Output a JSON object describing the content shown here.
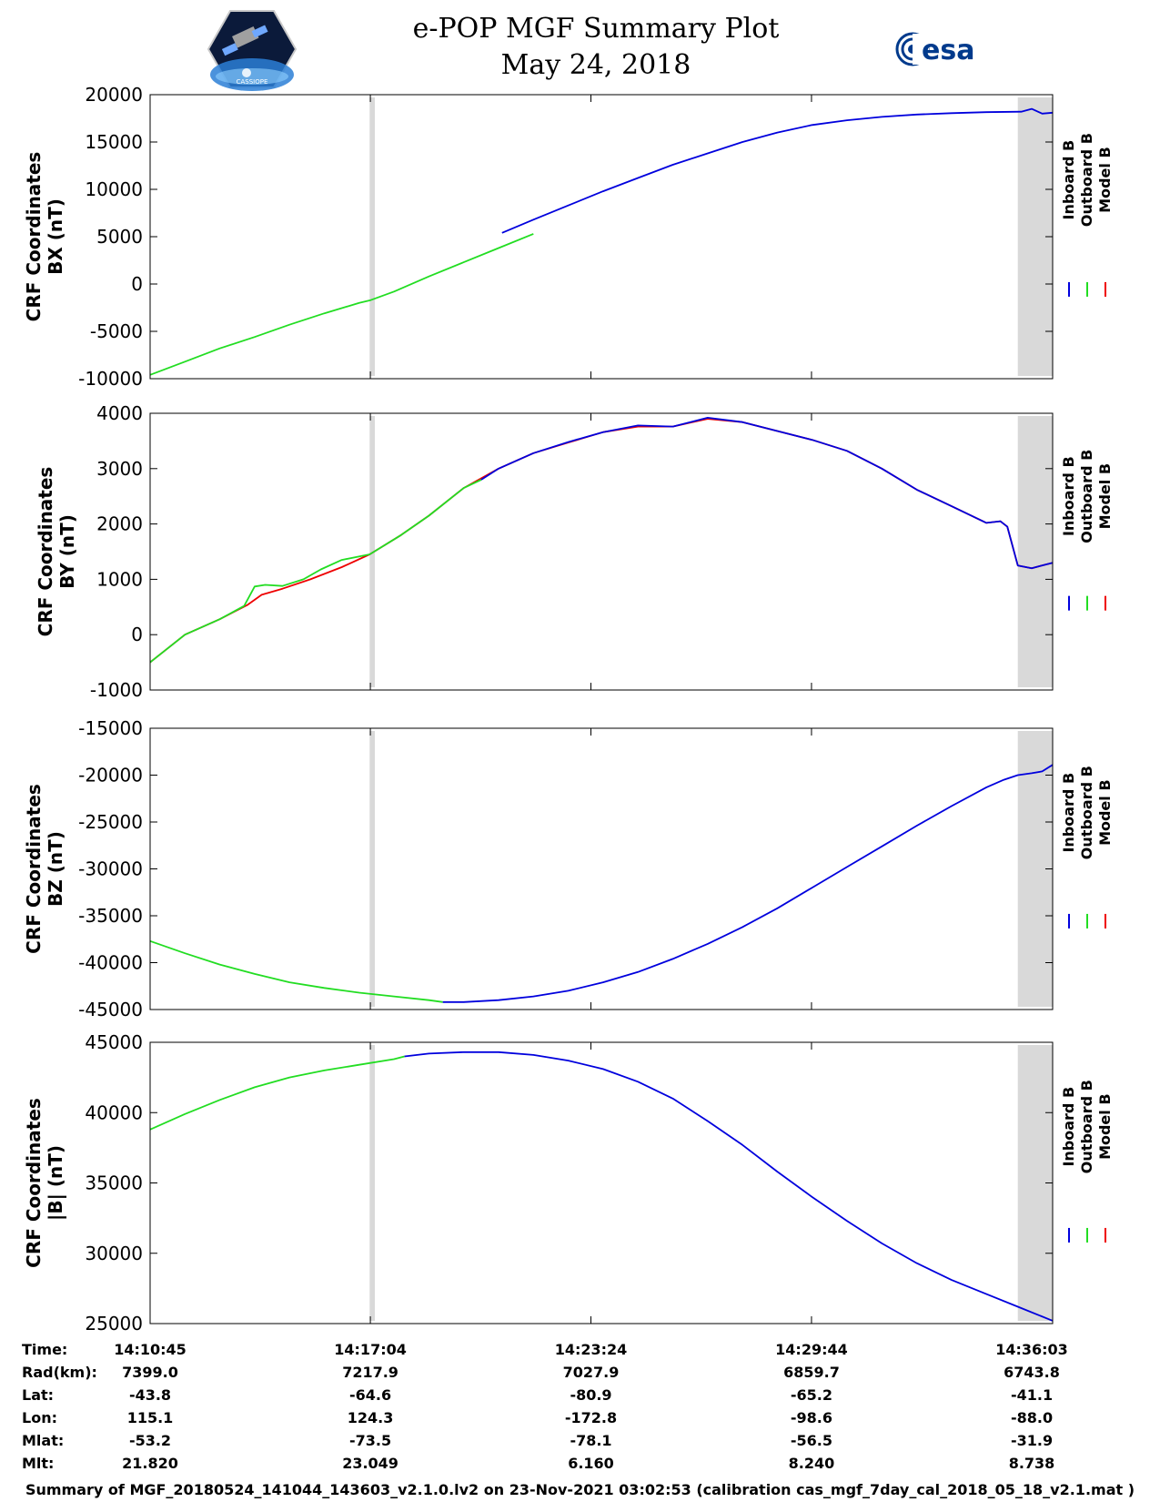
{
  "title": "e-POP MGF Summary Plot",
  "subtitle": "May 24, 2018",
  "esa_logo_text": "esa",
  "cassiope_logo_text": "CASSIOPE",
  "legend_labels": [
    "Inboard B",
    "Outboard B",
    "Model B"
  ],
  "colors": {
    "inboard": "#0000dd",
    "outboard": "#22dd22",
    "model": "#ee0000",
    "gap_band": "#d9d9d9",
    "esa_blue": "#003a8c"
  },
  "chart_data": [
    {
      "type": "line",
      "id": "bx",
      "ylabel_line1": "CRF Coordinates",
      "ylabel_line2": "BX (nT)",
      "ylim": [
        -10000,
        20000
      ],
      "yticks": [
        20000,
        15000,
        10000,
        5000,
        0,
        -5000,
        -10000
      ],
      "ytick_labels": [
        "20000",
        "15000",
        "10000",
        "5000",
        "0",
        "-5000",
        "-10000"
      ],
      "x_minutes": [
        0,
        1,
        2,
        3,
        4,
        5,
        6,
        6.33,
        7,
        8,
        9,
        10,
        11,
        12,
        13,
        14,
        15,
        16,
        17,
        18,
        19,
        20,
        21,
        22,
        23,
        24,
        25,
        25.3,
        25.6,
        25.9
      ],
      "series": [
        {
          "name": "Outboard B",
          "color": "#22dd22",
          "x_range": [
            0,
            10.1
          ],
          "values": [
            -9600,
            -8200,
            -6800,
            -5600,
            -4300,
            -3100,
            -2000,
            -1700,
            -800,
            800,
            2300,
            3800,
            5300
          ]
        },
        {
          "name": "Inboard B",
          "color": "#0000dd",
          "x_range": [
            10.1,
            25.9
          ],
          "x": [
            10.1,
            11,
            12,
            13,
            14,
            15,
            16,
            17,
            18,
            19,
            20,
            21,
            22,
            23,
            24,
            25,
            25.3,
            25.6,
            25.9
          ],
          "values": [
            5400,
            6800,
            8300,
            9800,
            11200,
            12600,
            13800,
            15000,
            16000,
            16800,
            17300,
            17650,
            17900,
            18050,
            18150,
            18200,
            18500,
            18000,
            18100
          ]
        }
      ],
      "gap_bands_minutes": [
        [
          6.3,
          6.45
        ],
        [
          24.9,
          25.9
        ]
      ]
    },
    {
      "type": "line",
      "id": "by",
      "ylabel_line1": "CRF Coordinates",
      "ylabel_line2": "BY (nT)",
      "ylim": [
        -1000,
        4000
      ],
      "yticks": [
        4000,
        3000,
        2000,
        1000,
        0,
        -1000
      ],
      "ytick_labels": [
        "4000",
        "3000",
        "2000",
        "1000",
        "0",
        "-1000"
      ],
      "series": [
        {
          "name": "Model B",
          "color": "#ee0000",
          "x": [
            0,
            1,
            2,
            2.8,
            3.2,
            3.8,
            4.6,
            5.5,
            6.3,
            7.2,
            8,
            9,
            10,
            11,
            12,
            13,
            14,
            15,
            16,
            17,
            18,
            19,
            20,
            21,
            22,
            23,
            24,
            24.4,
            24.6,
            24.9,
            25.3,
            25.9
          ],
          "values": [
            -500,
            0,
            280,
            540,
            720,
            830,
            1000,
            1220,
            1450,
            1800,
            2150,
            2650,
            3000,
            3280,
            3470,
            3660,
            3760,
            3760,
            3900,
            3840,
            3680,
            3520,
            3320,
            3000,
            2620,
            2320,
            2020,
            2050,
            1950,
            1250,
            1200,
            1300
          ]
        },
        {
          "name": "Outboard B",
          "color": "#22dd22",
          "x": [
            0,
            1,
            2,
            2.7,
            3.0,
            3.3,
            3.8,
            4.4,
            4.9,
            5.5,
            6.3,
            7.2,
            8,
            9,
            9.5
          ],
          "values": [
            -500,
            0,
            280,
            520,
            870,
            900,
            880,
            1000,
            1180,
            1350,
            1450,
            1800,
            2150,
            2650,
            2800
          ]
        },
        {
          "name": "Inboard B",
          "color": "#0000dd",
          "x": [
            9.5,
            10,
            11,
            12,
            13,
            14,
            14.5,
            15,
            16,
            17,
            18,
            19,
            20,
            21,
            22,
            23,
            24,
            24.4,
            24.6,
            24.9,
            25.3,
            25.9
          ],
          "values": [
            2800,
            3000,
            3280,
            3480,
            3660,
            3780,
            3770,
            3760,
            3920,
            3840,
            3680,
            3520,
            3320,
            3000,
            2620,
            2320,
            2020,
            2050,
            1950,
            1250,
            1200,
            1300
          ]
        }
      ],
      "gap_bands_minutes": [
        [
          6.3,
          6.45
        ],
        [
          24.9,
          25.9
        ]
      ]
    },
    {
      "type": "line",
      "id": "bz",
      "ylabel_line1": "CRF Coordinates",
      "ylabel_line2": "BZ (nT)",
      "ylim": [
        -45000,
        -15000
      ],
      "yticks": [
        -15000,
        -20000,
        -25000,
        -30000,
        -35000,
        -40000,
        -45000
      ],
      "ytick_labels": [
        "-15000",
        "-20000",
        "-25000",
        "-30000",
        "-35000",
        "-40000",
        "-45000"
      ],
      "series": [
        {
          "name": "Outboard B",
          "color": "#22dd22",
          "x": [
            0,
            1,
            2,
            3,
            4,
            5,
            6,
            7,
            8,
            8.4
          ],
          "values": [
            -37700,
            -39000,
            -40200,
            -41200,
            -42100,
            -42700,
            -43200,
            -43600,
            -44000,
            -44200
          ]
        },
        {
          "name": "Inboard B",
          "color": "#0000dd",
          "x": [
            8.4,
            9,
            10,
            11,
            12,
            13,
            14,
            15,
            16,
            17,
            18,
            19,
            20,
            21,
            22,
            23,
            24,
            24.5,
            24.9,
            25.3,
            25.6,
            25.9
          ],
          "values": [
            -44200,
            -44200,
            -44000,
            -43600,
            -43000,
            -42100,
            -41000,
            -39600,
            -38000,
            -36200,
            -34200,
            -32000,
            -29800,
            -27600,
            -25400,
            -23300,
            -21300,
            -20500,
            -20000,
            -19800,
            -19600,
            -18900
          ]
        }
      ],
      "gap_bands_minutes": [
        [
          6.3,
          6.45
        ],
        [
          24.9,
          25.9
        ]
      ]
    },
    {
      "type": "line",
      "id": "bmag",
      "ylabel_line1": "CRF Coordinates",
      "ylabel_line2": "|B| (nT)",
      "ylim": [
        25000,
        45000
      ],
      "yticks": [
        45000,
        40000,
        35000,
        30000,
        25000
      ],
      "ytick_labels": [
        "45000",
        "40000",
        "35000",
        "30000",
        "25000"
      ],
      "series": [
        {
          "name": "Outboard B",
          "color": "#22dd22",
          "x": [
            0,
            1,
            2,
            3,
            4,
            5,
            6,
            7,
            7.3
          ],
          "values": [
            38800,
            39900,
            40900,
            41800,
            42500,
            43000,
            43400,
            43800,
            44000
          ]
        },
        {
          "name": "Inboard B",
          "color": "#0000dd",
          "x": [
            7.3,
            8,
            9,
            10,
            11,
            12,
            13,
            14,
            15,
            16,
            17,
            18,
            19,
            20,
            21,
            22,
            23,
            24,
            25,
            25.9
          ],
          "values": [
            44000,
            44200,
            44300,
            44300,
            44100,
            43700,
            43100,
            42200,
            41000,
            39400,
            37700,
            35800,
            34000,
            32300,
            30700,
            29300,
            28100,
            27100,
            26100,
            25200
          ]
        }
      ],
      "gap_bands_minutes": [
        [
          6.3,
          6.45
        ],
        [
          24.9,
          25.9
        ]
      ]
    }
  ],
  "x_axis": {
    "range_minutes": [
      0,
      25.9
    ],
    "tick_minutes": [
      6.32,
      12.65,
      18.98
    ],
    "columns_minutes": [
      0,
      6.32,
      12.65,
      18.98,
      25.3
    ]
  },
  "ephemeris": {
    "row_labels": [
      "Time:",
      "Rad(km):",
      "Lat:",
      "Lon:",
      "Mlat:",
      "Mlt:"
    ],
    "columns": [
      [
        "14:10:45",
        "7399.0",
        "-43.8",
        "115.1",
        "-53.2",
        "21.820"
      ],
      [
        "14:17:04",
        "7217.9",
        "-64.6",
        "124.3",
        "-73.5",
        "23.049"
      ],
      [
        "14:23:24",
        "7027.9",
        "-80.9",
        "-172.8",
        "-78.1",
        "6.160"
      ],
      [
        "14:29:44",
        "6859.7",
        "-65.2",
        "-98.6",
        "-56.5",
        "8.240"
      ],
      [
        "14:36:03",
        "6743.8",
        "-41.1",
        "-88.0",
        "-31.9",
        "8.738"
      ]
    ]
  },
  "footer": "Summary of MGF_20180524_141044_143603_v2.1.0.lv2 on 23-Nov-2021 03:02:53 (calibration cas_mgf_7day_cal_2018_05_18_v2.1.mat )"
}
